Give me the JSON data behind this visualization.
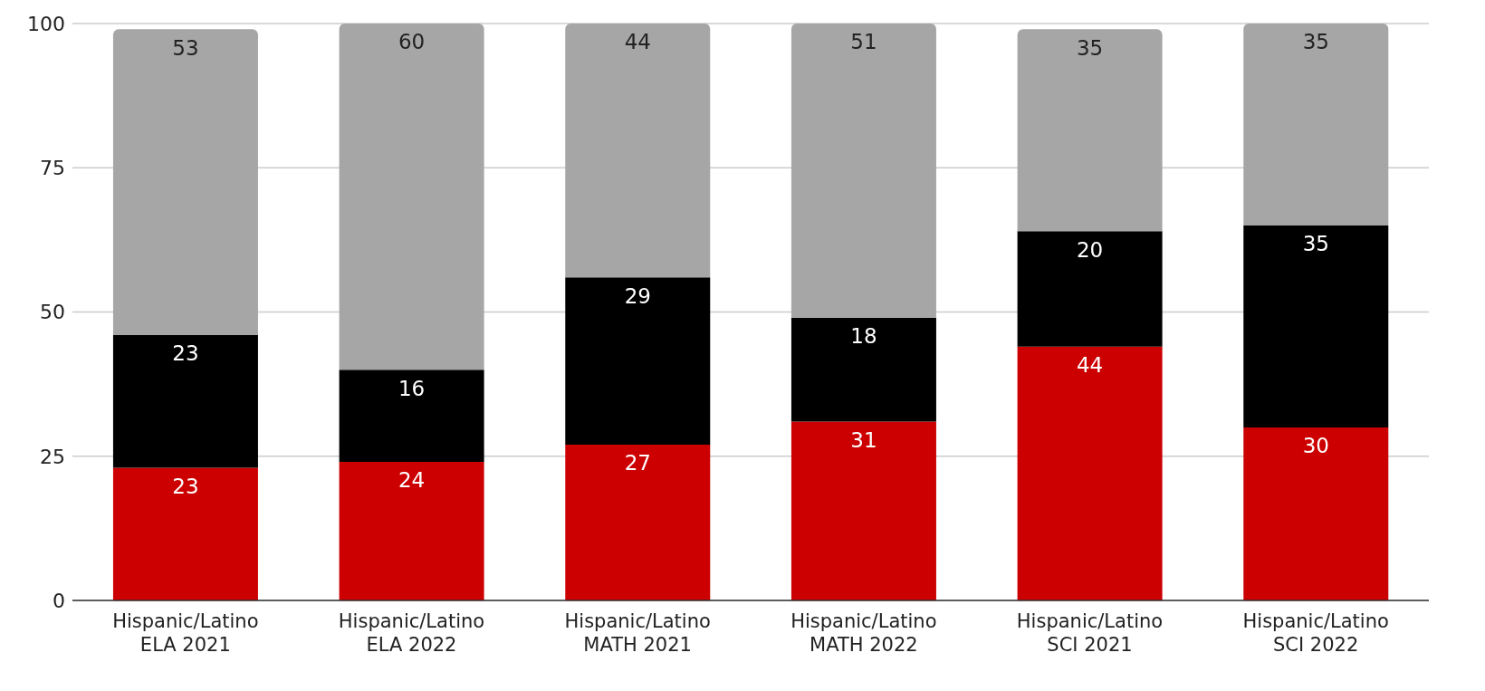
{
  "chart_data": {
    "type": "bar",
    "stacked": true,
    "data_labels": true,
    "grid": "y",
    "legend": false,
    "categories": [
      "Hispanic/Latino\nELA 2021",
      "Hispanic/Latino\nELA 2022",
      "Hispanic/Latino\nMATH 2021",
      "Hispanic/Latino\nMATH 2022",
      "Hispanic/Latino\nSCI 2021",
      "Hispanic/Latino\nSCI 2022"
    ],
    "series": [
      {
        "color": "#cc0000",
        "values": [
          23,
          24,
          27,
          31,
          44,
          30
        ]
      },
      {
        "color": "#000000",
        "values": [
          23,
          16,
          29,
          18,
          20,
          35
        ]
      },
      {
        "color": "#a6a6a6",
        "values": [
          53,
          60,
          44,
          51,
          35,
          35
        ]
      }
    ],
    "ylim": [
      0,
      100
    ],
    "yticks": [
      0,
      25,
      50,
      75,
      100
    ]
  }
}
